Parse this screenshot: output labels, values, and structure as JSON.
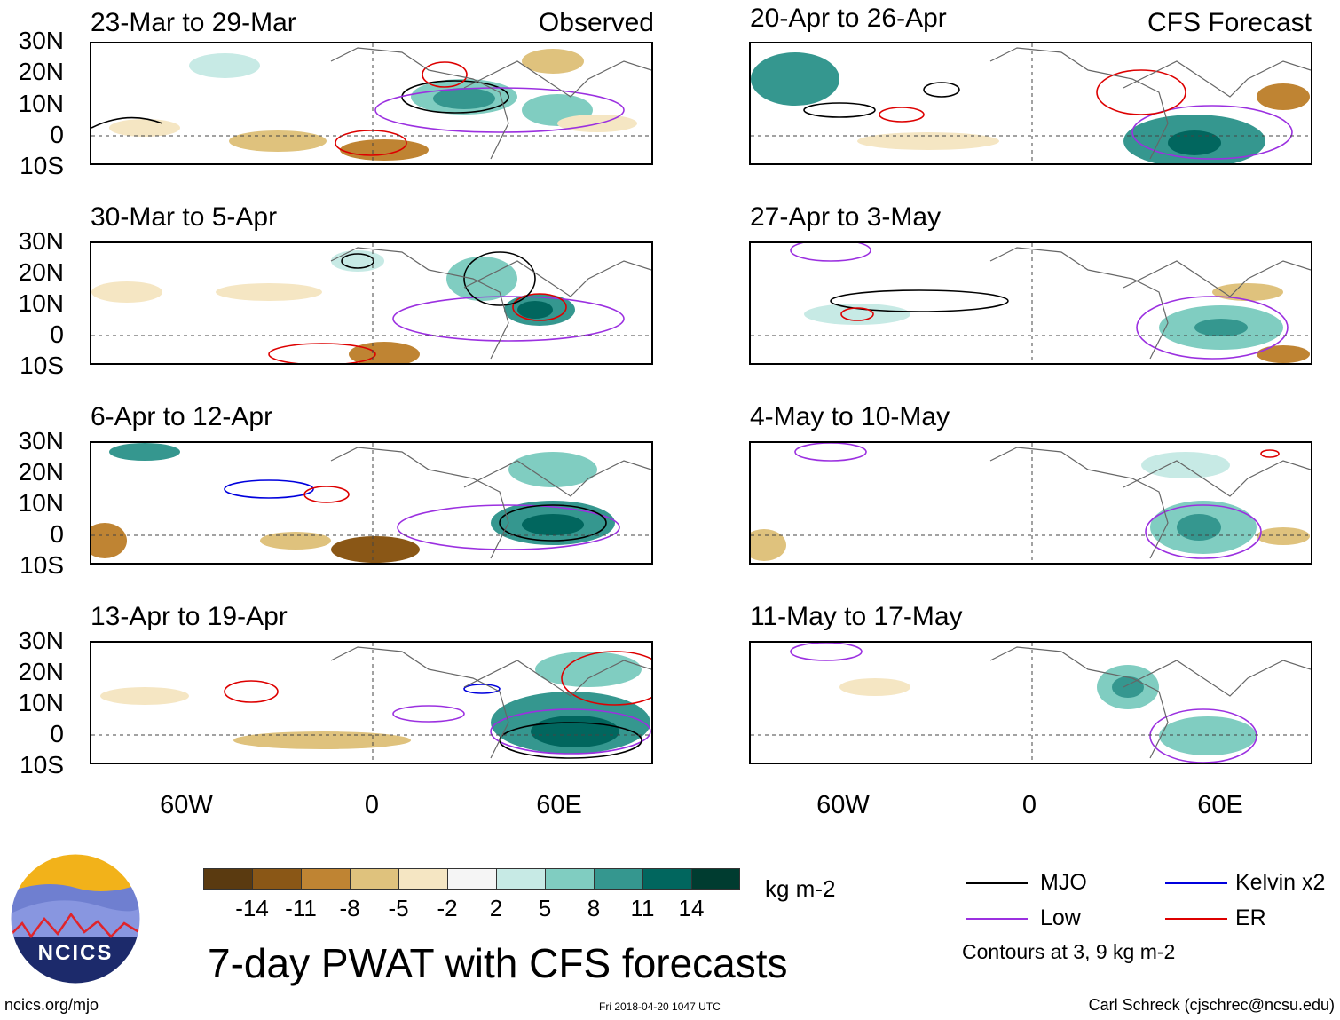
{
  "panels": [
    {
      "title": "23-Mar to 29-Mar",
      "label": "Observed"
    },
    {
      "title": "30-Mar to 5-Apr",
      "label": ""
    },
    {
      "title": "6-Apr to 12-Apr",
      "label": ""
    },
    {
      "title": "13-Apr to 19-Apr",
      "label": ""
    },
    {
      "title": "20-Apr to 26-Apr",
      "label": "CFS Forecast"
    },
    {
      "title": "27-Apr to 3-May",
      "label": ""
    },
    {
      "title": "4-May to 10-May",
      "label": ""
    },
    {
      "title": "11-May to 17-May",
      "label": ""
    }
  ],
  "lat_labels": [
    "30N",
    "20N",
    "10N",
    "0",
    "10S"
  ],
  "lon_labels": [
    "60W",
    "0",
    "60E"
  ],
  "colorbar": {
    "colors": [
      "#5a3a10",
      "#8a5716",
      "#bf8433",
      "#dfc27d",
      "#f5e6c3",
      "#f5f5f5",
      "#c7eae5",
      "#80cdc1",
      "#35978f",
      "#01665e",
      "#003c30"
    ],
    "ticks": [
      "-14",
      "-11",
      "-8",
      "-5",
      "-2",
      "2",
      "5",
      "8",
      "11",
      "14"
    ],
    "units": "kg m-2"
  },
  "legend": {
    "items": [
      {
        "name": "MJO",
        "color": "#000000"
      },
      {
        "name": "Kelvin x2",
        "color": "#0000dd"
      },
      {
        "name": "Low",
        "color": "#9b30e0"
      },
      {
        "name": "ER",
        "color": "#dd0000"
      }
    ],
    "note": "Contours at 3, 9 kg m-2"
  },
  "logo": {
    "text": "NCICS"
  },
  "main_title": "7-day PWAT with CFS forecasts",
  "footer": {
    "left": "ncics.org/mjo",
    "center": "Fri 2018-04-20 1047 UTC",
    "right": "Carl Schreck (cjschrec@ncsu.edu)"
  }
}
